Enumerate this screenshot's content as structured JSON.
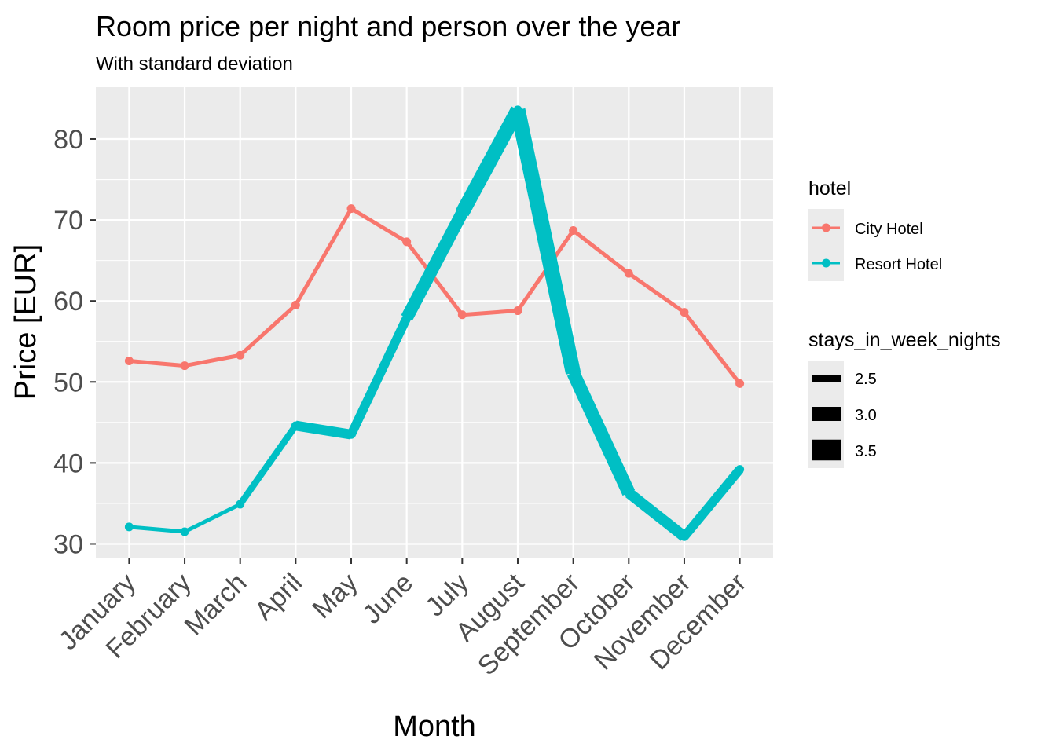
{
  "chart_data": {
    "type": "line",
    "title": "Room price per night and person over the year",
    "subtitle": "With standard deviation",
    "xlabel": "Month",
    "ylabel": "Price [EUR]",
    "ylim": [
      28.3,
      86.4
    ],
    "yticks": [
      30,
      40,
      50,
      60,
      70,
      80
    ],
    "grid": true,
    "categories": [
      "January",
      "February",
      "March",
      "April",
      "May",
      "June",
      "July",
      "August",
      "September",
      "October",
      "November",
      "December"
    ],
    "series": [
      {
        "name": "City Hotel",
        "color": "#F8766D",
        "values": [
          52.6,
          52.0,
          53.3,
          59.5,
          71.4,
          67.3,
          58.3,
          58.8,
          68.7,
          63.4,
          58.6,
          49.8
        ],
        "stays_in_week_nights": [
          2.4,
          2.4,
          2.4,
          2.4,
          2.4,
          2.4,
          2.4,
          2.4,
          2.4,
          2.4,
          2.4,
          2.4
        ]
      },
      {
        "name": "Resort Hotel",
        "color": "#00BFC4",
        "values": [
          32.1,
          31.5,
          34.9,
          44.6,
          43.5,
          57.9,
          70.9,
          83.6,
          51.1,
          36.3,
          30.9,
          39.2
        ],
        "stays_in_week_nights": [
          2.4,
          2.4,
          2.7,
          3.1,
          3.0,
          3.4,
          3.6,
          3.7,
          3.5,
          3.2,
          3.0,
          2.9
        ]
      }
    ],
    "legend": {
      "placement": "right",
      "color_title": "hotel",
      "size_title": "stays_in_week_nights",
      "size_entries": [
        {
          "label": "2.5",
          "value": 2.5
        },
        {
          "label": "3.0",
          "value": 3.0
        },
        {
          "label": "3.5",
          "value": 3.5
        }
      ]
    }
  }
}
